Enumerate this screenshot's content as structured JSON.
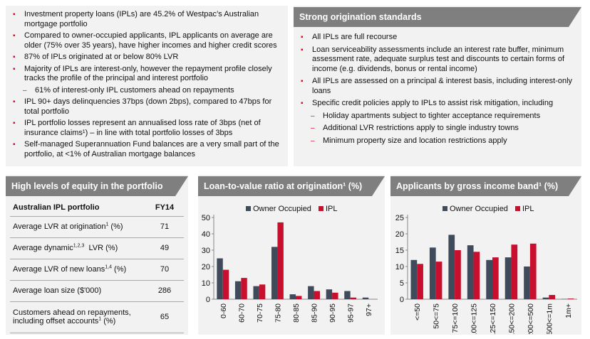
{
  "left_bullets": [
    {
      "text": "Investment property loans (IPLs) are 45.2% of Westpac’s Australian mortgage portfolio",
      "sub": false
    },
    {
      "text": "Compared to owner-occupied applicants, IPL applicants on average are older (75% over 35 years), have higher incomes and higher credit scores",
      "sub": false
    },
    {
      "text": "87% of IPLs originated at or below 80% LVR",
      "sub": false
    },
    {
      "text": "Majority of IPLs are interest-only, however the repayment profile closely tracks the profile of the principal and interest portfolio",
      "sub": false
    },
    {
      "text": "61% of interest-only IPL customers ahead on repayments",
      "sub": true
    },
    {
      "text": "IPL 90+ days delinquencies 37bps (down 2bps), compared to 47bps for total portfolio",
      "sub": false
    },
    {
      "text": "IPL portfolio losses represent an annualised loss rate of 3bps (net of insurance claims¹) – in line with total portfolio losses of 3bps",
      "sub": false
    },
    {
      "text": "Self-managed Superannuation Fund balances are a very small part of the portfolio, at <1% of Australian mortgage balances",
      "sub": false
    }
  ],
  "origination": {
    "title": "Strong origination standards",
    "bullets": [
      {
        "text": "All IPLs are full recourse",
        "sub": false
      },
      {
        "text": "Loan serviceability assessments include an interest rate buffer, minimum assessment rate, adequate surplus test and discounts to certain forms of income (e.g. dividends, bonus or rental income)",
        "sub": false
      },
      {
        "text": "All IPLs are assessed on a principal & interest basis, including interest-only loans",
        "sub": false
      },
      {
        "text": "Specific credit policies apply to IPLs to assist risk mitigation, including",
        "sub": false
      },
      {
        "text": "Holiday apartments subject to tighter acceptance requirements",
        "sub": true
      },
      {
        "text": "Additional LVR restrictions apply to single industry towns",
        "sub": true
      },
      {
        "text": "Minimum property size and location restrictions apply",
        "sub": true
      }
    ]
  },
  "equity": {
    "title": "High levels of equity in the portfolio",
    "col1": "Australian IPL portfolio",
    "col2": "FY14",
    "rows": [
      {
        "label": "Average LVR at origination",
        "sup": "1",
        "suffix": " (%)",
        "value": "71"
      },
      {
        "label": "Average dynamic",
        "sup": "1,2,3",
        "suffix": "  LVR (%)",
        "value": "49"
      },
      {
        "label": "Average LVR of new loans",
        "sup": "1,4",
        "suffix": " (%)",
        "value": "70"
      },
      {
        "label": "Average loan size ($'000)",
        "sup": "",
        "suffix": "",
        "value": "286"
      },
      {
        "label": "Customers ahead on repayments, including offset accounts",
        "sup": "1",
        "suffix": " (%)",
        "value": "65"
      }
    ]
  },
  "colors": {
    "owner_occupied": "#3f4b5b",
    "ipl": "#c8102e",
    "header": "#7f7f7f",
    "accent": "#c8102e"
  },
  "chart_data": [
    {
      "type": "bar",
      "title": "Loan-to-value ratio at origination¹ (%)",
      "categories": [
        "0-60",
        "60-70",
        "70-75",
        "75-80",
        "80-85",
        "85-90",
        "90-95",
        "95-97",
        "97+"
      ],
      "series": [
        {
          "name": "Owner Occupied",
          "values": [
            25,
            11,
            8,
            32,
            3,
            8,
            6,
            5,
            1
          ]
        },
        {
          "name": "IPL",
          "values": [
            18,
            13,
            9,
            47,
            2,
            5,
            4,
            1,
            0
          ]
        }
      ],
      "ylim": [
        0,
        50
      ],
      "yticks": [
        0,
        10,
        20,
        30,
        40,
        50
      ],
      "legend": "top"
    },
    {
      "type": "bar",
      "title": "Applicants by gross income band¹ (%)",
      "categories": [
        "<=50",
        "50<=75",
        "75<=100",
        "100<=125",
        "125<=150",
        "150<=200",
        "200<=500",
        "500<=1m",
        "1m+"
      ],
      "series": [
        {
          "name": "Owner Occupied",
          "values": [
            12,
            15.8,
            19.7,
            16.5,
            12,
            12.8,
            10,
            0.5,
            0.1
          ]
        },
        {
          "name": "IPL",
          "values": [
            10.8,
            11.5,
            15,
            14.5,
            12.8,
            16.7,
            17,
            1.3,
            0.2
          ]
        }
      ],
      "ylim": [
        0,
        25
      ],
      "yticks": [
        0,
        5,
        10,
        15,
        20,
        25
      ],
      "legend": "top"
    }
  ]
}
